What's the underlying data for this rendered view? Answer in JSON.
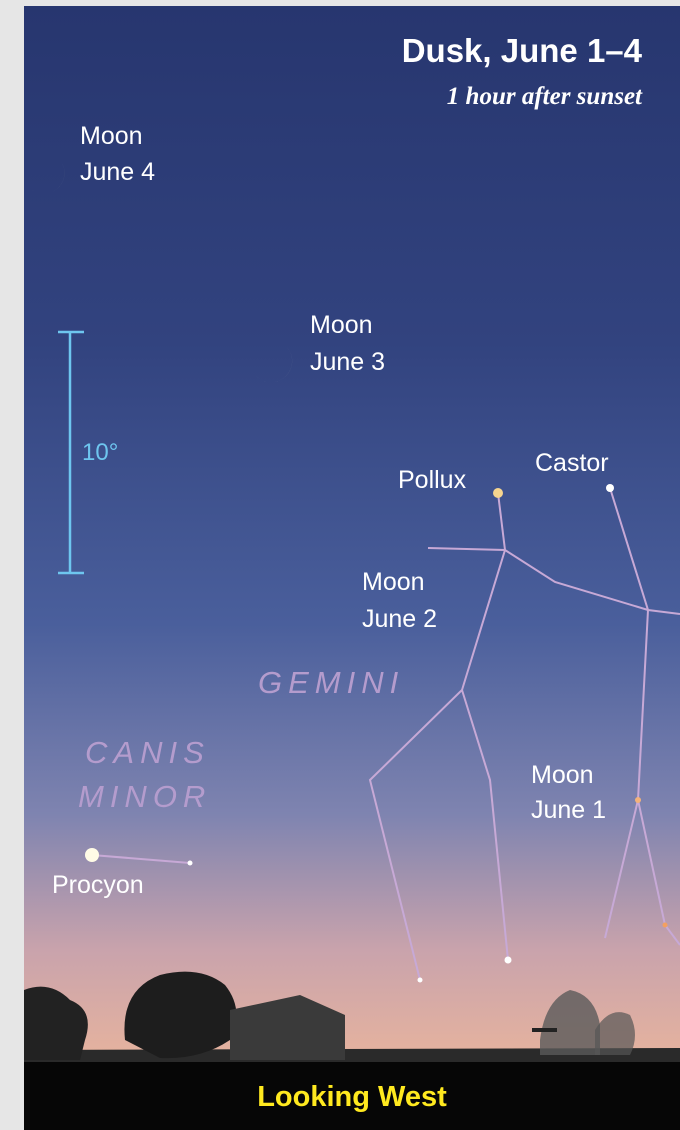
{
  "header": {
    "title": "Dusk, June 1–4",
    "subtitle": "1 hour after sunset"
  },
  "moons": [
    {
      "name": "Moon",
      "date": "June 4"
    },
    {
      "name": "Moon",
      "date": "June 3"
    },
    {
      "name": "Moon",
      "date": "June 2"
    },
    {
      "name": "Moon",
      "date": "June 1"
    }
  ],
  "stars": [
    "Pollux",
    "Castor",
    "Procyon"
  ],
  "constellations": {
    "gemini": "GEMINI",
    "canis_minor": [
      "CANIS",
      "MINOR"
    ]
  },
  "scale": "10°",
  "footer": "Looking West"
}
